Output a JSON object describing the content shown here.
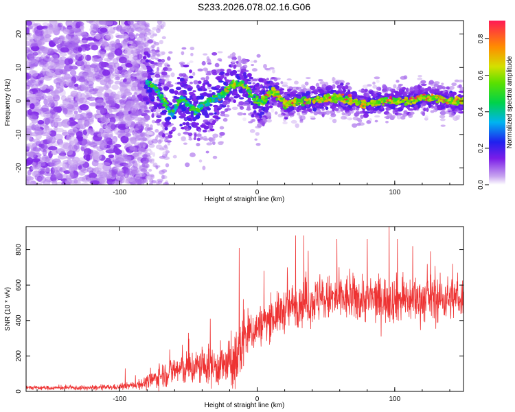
{
  "title": "S233.2026.078.02.16.G06",
  "chart_data": [
    {
      "type": "heatmap",
      "name": "spectrogram",
      "xlabel": "Height of straight line (km)",
      "ylabel": "Frequency (Hz)",
      "xlim": [
        -168,
        150
      ],
      "ylim": [
        -25,
        24
      ],
      "xticks": [
        -100,
        0,
        100
      ],
      "yticks": [
        -20,
        -10,
        0,
        10,
        20
      ],
      "colorbar": {
        "label": "Normalized spectral amplitude",
        "range": [
          0,
          0.9
        ],
        "ticks": [
          0,
          0.2,
          0.4,
          0.6,
          0.8
        ],
        "tick_labels": [
          "0.0",
          "0.2",
          "0.4",
          "0.6",
          "0.8"
        ]
      },
      "ridge": {
        "description": "dominant Doppler frequency track",
        "points": [
          [
            -80,
            6
          ],
          [
            -72,
            3
          ],
          [
            -68,
            0
          ],
          [
            -62,
            -4
          ],
          [
            -55,
            1
          ],
          [
            -45,
            -3
          ],
          [
            -35,
            0
          ],
          [
            -25,
            2
          ],
          [
            -18,
            5
          ],
          [
            -10,
            5
          ],
          [
            -5,
            2
          ],
          [
            0,
            0
          ],
          [
            5,
            0
          ],
          [
            10,
            3
          ],
          [
            15,
            2
          ],
          [
            20,
            -1
          ],
          [
            30,
            0
          ],
          [
            40,
            0
          ],
          [
            50,
            1
          ],
          [
            60,
            1
          ],
          [
            70,
            0
          ],
          [
            80,
            -1
          ],
          [
            90,
            0
          ],
          [
            100,
            0
          ],
          [
            110,
            0
          ],
          [
            120,
            1
          ],
          [
            130,
            1
          ],
          [
            140,
            0
          ],
          [
            150,
            0
          ]
        ]
      }
    },
    {
      "type": "line",
      "name": "snr",
      "xlabel": "Height of straight line (km)",
      "ylabel": "SNR (10 * v/v)",
      "xlim": [
        -168,
        150
      ],
      "ylim": [
        0,
        930
      ],
      "xticks": [
        -100,
        0,
        100
      ],
      "yticks": [
        0,
        200,
        400,
        600,
        800
      ],
      "color": "#ee3333",
      "envelope": {
        "x": [
          -168,
          -120,
          -100,
          -90,
          -80,
          -70,
          -60,
          -50,
          -40,
          -30,
          -20,
          -15,
          -12,
          -10,
          -5,
          0,
          10,
          20,
          30,
          40,
          50,
          60,
          70,
          80,
          90,
          100,
          110,
          120,
          130,
          140,
          150
        ],
        "mean": [
          20,
          20,
          25,
          35,
          50,
          90,
          120,
          130,
          140,
          140,
          150,
          170,
          250,
          300,
          330,
          360,
          410,
          460,
          500,
          510,
          520,
          525,
          525,
          520,
          520,
          520,
          520,
          520,
          520,
          525,
          530
        ],
        "spread": [
          10,
          12,
          15,
          20,
          35,
          60,
          80,
          90,
          95,
          100,
          120,
          160,
          180,
          150,
          120,
          100,
          100,
          110,
          120,
          120,
          120,
          120,
          120,
          120,
          120,
          120,
          120,
          120,
          120,
          110,
          100
        ]
      },
      "peaks": [
        [
          -96,
          130
        ],
        [
          -50,
          330
        ],
        [
          -34,
          410
        ],
        [
          -13,
          810
        ],
        [
          -10,
          520
        ],
        [
          5,
          680
        ],
        [
          22,
          700
        ],
        [
          28,
          880
        ],
        [
          34,
          880
        ],
        [
          58,
          860
        ],
        [
          80,
          860
        ],
        [
          96,
          930
        ],
        [
          102,
          860
        ],
        [
          113,
          820
        ],
        [
          126,
          790
        ],
        [
          142,
          720
        ]
      ]
    }
  ]
}
